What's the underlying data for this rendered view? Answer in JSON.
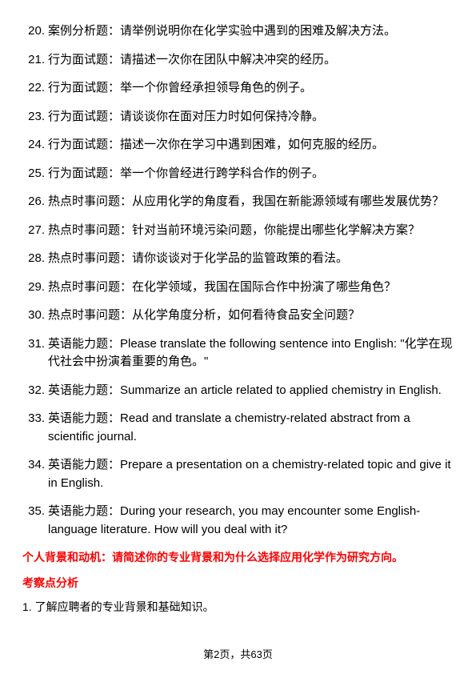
{
  "questions": [
    {
      "num": "20.",
      "text": "案例分析题：请举例说明你在化学实验中遇到的困难及解决方法。"
    },
    {
      "num": "21.",
      "text": "行为面试题：请描述一次你在团队中解决冲突的经历。"
    },
    {
      "num": "22.",
      "text": "行为面试题：举一个你曾经承担领导角色的例子。"
    },
    {
      "num": "23.",
      "text": "行为面试题：请谈谈你在面对压力时如何保持冷静。"
    },
    {
      "num": "24.",
      "text": "行为面试题：描述一次你在学习中遇到困难，如何克服的经历。"
    },
    {
      "num": "25.",
      "text": "行为面试题：举一个你曾经进行跨学科合作的例子。"
    },
    {
      "num": "26.",
      "text": "热点时事问题：从应用化学的角度看，我国在新能源领域有哪些发展优势？"
    },
    {
      "num": "27.",
      "text": "热点时事问题：针对当前环境污染问题，你能提出哪些化学解决方案？"
    },
    {
      "num": "28.",
      "text": "热点时事问题：请你谈谈对于化学品的监管政策的看法。"
    },
    {
      "num": "29.",
      "text": "热点时事问题：在化学领域，我国在国际合作中扮演了哪些角色？"
    },
    {
      "num": "30.",
      "text": "热点时事问题：从化学角度分析，如何看待食品安全问题？"
    },
    {
      "num": "31.",
      "text": "英语能力题：Please translate the following sentence into English: \"化学在现代社会中扮演着重要的角色。\""
    },
    {
      "num": "32.",
      "text": "英语能力题：Summarize an article related to applied chemistry in English."
    },
    {
      "num": "33.",
      "text": "英语能力题：Read and translate a chemistry-related abstract from a scientific journal."
    },
    {
      "num": "34.",
      "text": "英语能力题：Prepare a presentation on a chemistry-related topic and give it in English."
    },
    {
      "num": "35.",
      "text": "英语能力题：During your research, you may encounter some English-language literature. How will you deal with it?"
    }
  ],
  "sectionHeader": "个人背景和动机：请简述你的专业背景和为什么选择应用化学作为研究方向。",
  "subHeader": "考察点分析",
  "analysisItem": "1. 了解应聘者的专业背景和基础知识。",
  "pageFooter": "第2页，共63页",
  "styles": {
    "textColor": "#000000",
    "accentColor": "#ff0000",
    "backgroundColor": "#ffffff",
    "bodyFontSize": 15,
    "headerFontSize": 14,
    "footerFontSize": 13
  }
}
